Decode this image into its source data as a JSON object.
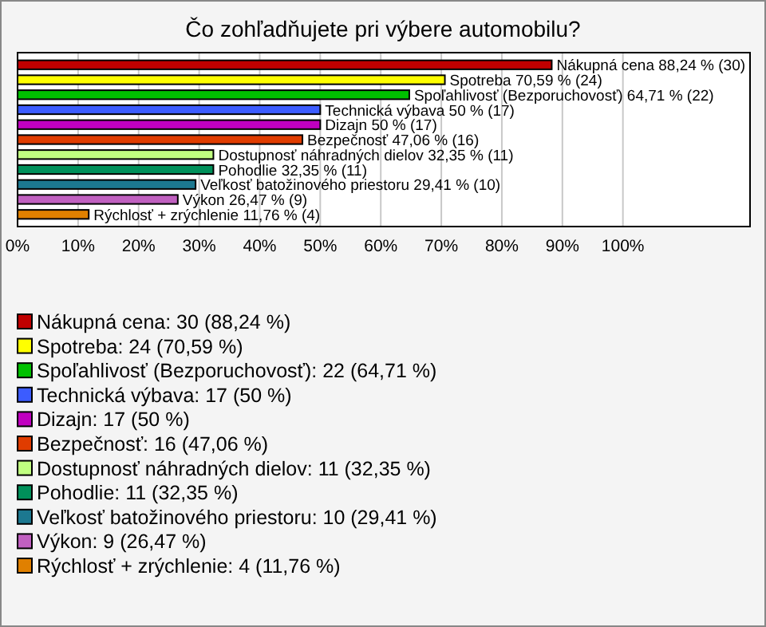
{
  "chart_data": {
    "type": "bar",
    "orientation": "horizontal",
    "stacked": true,
    "title": "Čo zohľadňujete pri výbere automobilu?",
    "categories": [
      null,
      null,
      null,
      null,
      null,
      null,
      null,
      null,
      null,
      null,
      null
    ],
    "series": [
      {
        "name": "Nákupná cena: 30 (88,24 %)",
        "color": "#c00000",
        "values": [
          88.24,
          null,
          null,
          null,
          null,
          null,
          null,
          null,
          null,
          null,
          null
        ],
        "value_labels": [
          "Nákupná cena 88,24 % (30)",
          null,
          null,
          null,
          null,
          null,
          null,
          null,
          null,
          null,
          null
        ]
      },
      {
        "name": "Spotreba: 24 (70,59 %)",
        "color": "#ffff00",
        "values": [
          null,
          70.59,
          null,
          null,
          null,
          null,
          null,
          null,
          null,
          null,
          null
        ],
        "value_labels": [
          null,
          "Spotreba 70,59 % (24)",
          null,
          null,
          null,
          null,
          null,
          null,
          null,
          null,
          null
        ]
      },
      {
        "name": "Spoľahlivosť (Bezporuchovosť): 22 (64,71 %)",
        "color": "#00c000",
        "values": [
          null,
          null,
          64.71,
          null,
          null,
          null,
          null,
          null,
          null,
          null,
          null
        ],
        "value_labels": [
          null,
          null,
          "Spoľahlivosť (Bezporuchovosť) 64,71 % (22)",
          null,
          null,
          null,
          null,
          null,
          null,
          null,
          null
        ]
      },
      {
        "name": "Technická výbava: 17 (50 %)",
        "color": "#3c5cff",
        "values": [
          null,
          null,
          null,
          50,
          null,
          null,
          null,
          null,
          null,
          null,
          null
        ],
        "value_labels": [
          null,
          null,
          null,
          "Technická výbava 50 % (17)",
          null,
          null,
          null,
          null,
          null,
          null,
          null
        ]
      },
      {
        "name": "Dizajn: 17 (50 %)",
        "color": "#c000c0",
        "values": [
          null,
          null,
          null,
          null,
          50,
          null,
          null,
          null,
          null,
          null,
          null
        ],
        "value_labels": [
          null,
          null,
          null,
          null,
          "Dizajn 50 % (17)",
          null,
          null,
          null,
          null,
          null,
          null
        ]
      },
      {
        "name": "Bezpečnosť: 16 (47,06 %)",
        "color": "#e03c00",
        "values": [
          null,
          null,
          null,
          null,
          null,
          47.06,
          null,
          null,
          null,
          null,
          null
        ],
        "value_labels": [
          null,
          null,
          null,
          null,
          null,
          "Bezpečnosť 47,06 % (16)",
          null,
          null,
          null,
          null,
          null
        ]
      },
      {
        "name": "Dostupnosť náhradných dielov: 11 (32,35 %)",
        "color": "#c0ff80",
        "values": [
          null,
          null,
          null,
          null,
          null,
          null,
          32.35,
          null,
          null,
          null,
          null
        ],
        "value_labels": [
          null,
          null,
          null,
          null,
          null,
          null,
          "Dostupnosť náhradných dielov 32,35 % (11)",
          null,
          null,
          null,
          null
        ]
      },
      {
        "name": "Pohodlie: 11 (32,35 %)",
        "color": "#00905a",
        "values": [
          null,
          null,
          null,
          null,
          null,
          null,
          null,
          32.35,
          null,
          null,
          null
        ],
        "value_labels": [
          null,
          null,
          null,
          null,
          null,
          null,
          null,
          "Pohodlie 32,35 % (11)",
          null,
          null,
          null
        ]
      },
      {
        "name": "Veľkosť batožinového priestoru: 10 (29,41 %)",
        "color": "#1c7890",
        "values": [
          null,
          null,
          null,
          null,
          null,
          null,
          null,
          null,
          29.41,
          null,
          null
        ],
        "value_labels": [
          null,
          null,
          null,
          null,
          null,
          null,
          null,
          null,
          "Veľkosť batožinového priestoru 29,41 % (10)",
          null,
          null
        ]
      },
      {
        "name": "Výkon: 9 (26,47 %)",
        "color": "#c060c0",
        "values": [
          null,
          null,
          null,
          null,
          null,
          null,
          null,
          null,
          null,
          26.47,
          null
        ],
        "value_labels": [
          null,
          null,
          null,
          null,
          null,
          null,
          null,
          null,
          null,
          "Výkon 26,47 % (9)",
          null
        ]
      },
      {
        "name": "Rýchlosť + zrýchlenie: 4 (11,76 %)",
        "color": "#e08000",
        "values": [
          null,
          null,
          null,
          null,
          null,
          null,
          null,
          null,
          null,
          null,
          11.76
        ],
        "value_labels": [
          null,
          null,
          null,
          null,
          null,
          null,
          null,
          null,
          null,
          null,
          "Rýchlosť + zrýchlenie 11,76 % (4)"
        ]
      }
    ],
    "xlim": [
      0,
      121
    ],
    "xticks": [
      {
        "value": 0,
        "label": "0%"
      },
      {
        "value": 10,
        "label": "10%"
      },
      {
        "value": 20,
        "label": "20%"
      },
      {
        "value": 30,
        "label": "30%"
      },
      {
        "value": 40,
        "label": "40%"
      },
      {
        "value": 50,
        "label": "50%"
      },
      {
        "value": 60,
        "label": "60%"
      },
      {
        "value": 70,
        "label": "70%"
      },
      {
        "value": 80,
        "label": "80%"
      },
      {
        "value": 90,
        "label": "90%"
      },
      {
        "value": 100,
        "label": "100%"
      }
    ],
    "grid": "x",
    "legend": "bottom"
  }
}
